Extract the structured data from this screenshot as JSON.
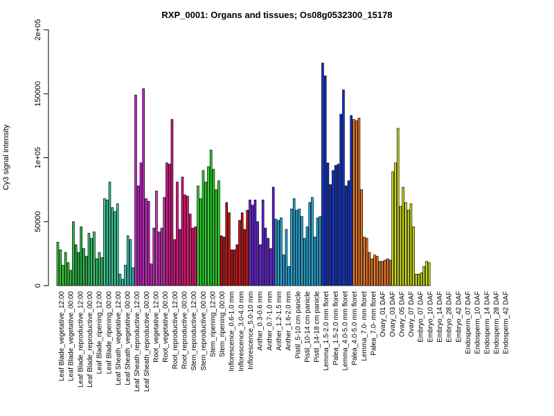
{
  "chart_data": {
    "type": "bar",
    "title": "RXP_0001: Organs and tissues; Os08g0532300_15178",
    "xlabel": "",
    "ylabel": "Cy3 signal intensity",
    "ylim": [
      0,
      200000
    ],
    "yticks": [
      0,
      50000,
      100000,
      150000,
      200000
    ],
    "ytick_labels": [
      "0",
      "50000",
      "1e+05",
      "150000",
      "2e+05"
    ],
    "grid": false,
    "x_labels": [
      "Leaf Blade_vegetative_12:00",
      "Leaf Blade_vegetative_00:00",
      "Leaf Blade_reproductive_12:00",
      "Leaf Blade_reproductive_00:00",
      "Leaf Blade_ripening_12:00",
      "Leaf Blade_ripening_00:00",
      "Leaf Sheath_vegetative_12:00",
      "Leaf Sheath_vegetative_00:00",
      "Leaf Sheath_reproductive_12:00",
      "Leaf Sheath_reproductive_00:00",
      "Root_vegetative_12:00",
      "Root_vegetative_00:00",
      "Root_reproductive_12:00",
      "Root_reproductive_00:00",
      "Stem_reproductive_12:00",
      "Stem_reproductive_00:00",
      "Stem_ripening_12:00",
      "Stem_ripening_00:00",
      "Inflorescence_0.6-1.0 mm",
      "Inflorescence_3.0-4.0 mm",
      "Inflorescence_5.0-10 mm",
      "Anther_0.3-0.6 mm",
      "Anther_0.7-1.0 mm",
      "Anther_1.2-1.5 mm",
      "Anther_1.6-2.0 mm",
      "Pistil_5-10 cm panicle",
      "Pistil_10-14 cm panicle",
      "Pistil_14-18 cm panicle",
      "Lemma_1.5-2.0 mm floret",
      "Palea_1.5-2.0 mm floret",
      "Lemma_4.0-5.0 mm floret",
      "Palea_4.0-5.0 mm floret",
      "Lemma_7.0- mm floret",
      "Palea_7.0- mm floret",
      "Ovary_01 DAF",
      "Ovary_03 DAF",
      "Ovary_05 DAF",
      "Ovary_07 DAF",
      "Embryo_07 DAF",
      "Embryo_10 DAF",
      "Embryo_14 DAF",
      "Embryo_28 DAF",
      "Embryo_42 DAF",
      "Endosperm_07 DAF",
      "Endosperm_10 DAF",
      "Endosperm_14 DAF",
      "Endosperm_28 DAF",
      "Endosperm_42 DAF"
    ],
    "groups": [
      {
        "color": "#33cc33",
        "values": [
          34000,
          28000,
          16000,
          26000,
          18000,
          12000
        ]
      },
      {
        "color": "#22bb44",
        "values": [
          50000,
          32000,
          26000,
          46000,
          29000,
          23000
        ]
      },
      {
        "color": "#33cc66",
        "values": [
          41000,
          37000,
          42000,
          21000,
          26000,
          22000
        ]
      },
      {
        "color": "#33cc99",
        "values": [
          68000,
          67000,
          81000,
          61000,
          58000,
          64000
        ]
      },
      {
        "color": "#33ccbb",
        "values": [
          9000,
          5000,
          16000,
          39000,
          36000,
          14000
        ]
      },
      {
        "color": "#cc22cc",
        "values": [
          149000,
          78000,
          96000,
          154000,
          68000,
          66000
        ]
      },
      {
        "color": "#cc33bb",
        "values": [
          17000,
          45000,
          74000,
          42000,
          45000,
          69000
        ]
      },
      {
        "color": "#dd1188",
        "values": [
          96000,
          95000,
          130000,
          36000,
          81000,
          44000
        ]
      },
      {
        "color": "#ee1177",
        "values": [
          85000,
          71000,
          70000,
          56000,
          45000,
          46000
        ]
      },
      {
        "color": "#22dd22",
        "values": [
          78000,
          68000,
          90000,
          81000,
          93000,
          106000,
          91000,
          75000,
          82000
        ]
      },
      {
        "color": "#cc1111",
        "values": [
          39000,
          38000,
          65000,
          57000,
          28000,
          28000,
          32000,
          51000,
          57000,
          44000,
          59000
        ]
      },
      {
        "color": "#6622dd",
        "values": [
          67000,
          63000,
          67000,
          50000,
          32000,
          67000,
          45000,
          37000,
          29000,
          77000
        ]
      },
      {
        "color": "#22aadd",
        "values": [
          52000,
          51000,
          53000,
          24000,
          44000,
          15000,
          60000,
          68000,
          59000,
          60000,
          54000,
          37000,
          46000,
          65000,
          69000,
          38000,
          53000,
          54000
        ]
      },
      {
        "color": "#1133cc",
        "values": [
          174000,
          164000,
          96000,
          79000,
          90000,
          94000,
          95000,
          134000,
          153000,
          78000,
          82000,
          133000
        ]
      },
      {
        "color": "#ee7722",
        "values": [
          130000,
          129000,
          131000,
          75000,
          38000,
          37000,
          26000,
          21000,
          24000,
          23000,
          19000,
          19000,
          20000,
          21000,
          20000
        ]
      },
      {
        "color": "#ccdd11",
        "values": [
          89000,
          96000,
          123000,
          62000,
          77000,
          65000,
          59000,
          64000,
          46000,
          9000,
          9000,
          10000,
          15000,
          19000,
          18000
        ]
      }
    ]
  }
}
